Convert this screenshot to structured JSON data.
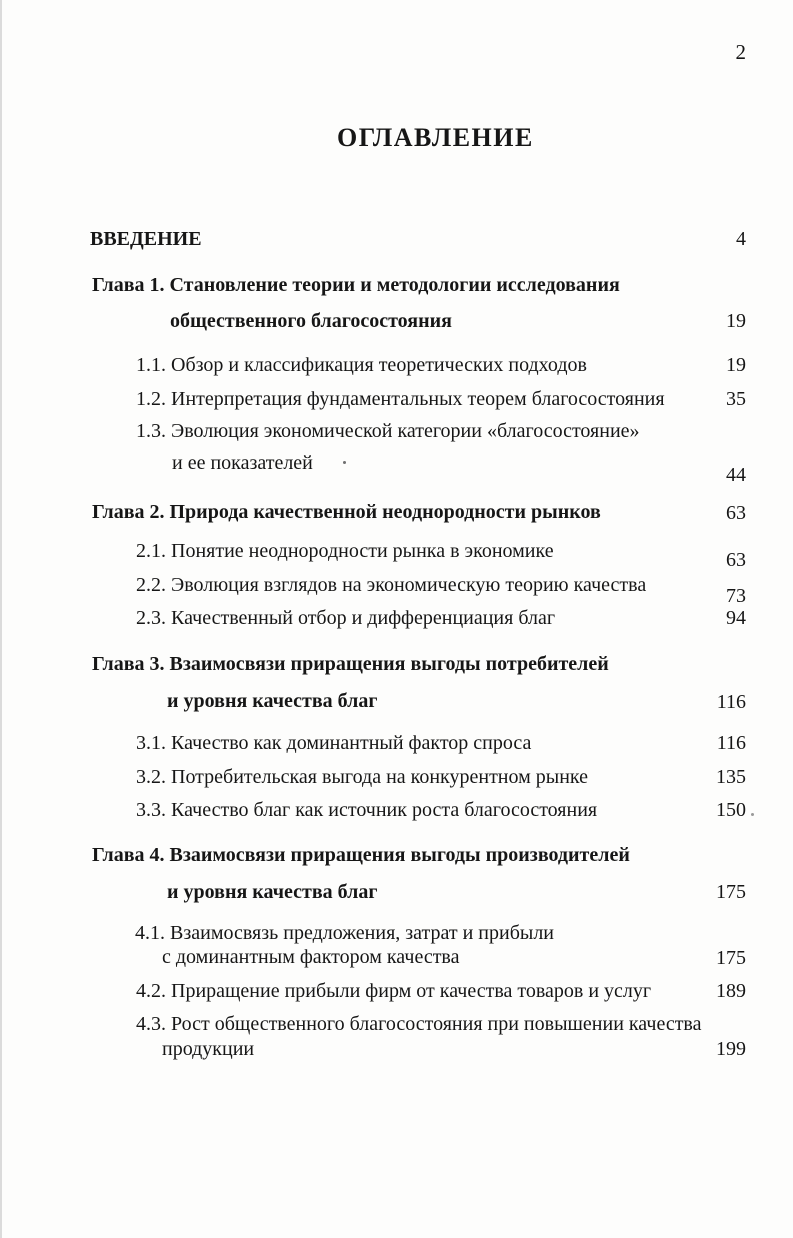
{
  "page": {
    "number": "2",
    "title": "ОГЛАВЛЕНИЕ"
  },
  "toc": {
    "lines": [
      {
        "id": "vvedenie",
        "text": "ВВЕДЕНИЕ",
        "page": "4"
      },
      {
        "id": "ch1-l1",
        "text": "Глава 1. Становление теории и методологии исследования"
      },
      {
        "id": "ch1-l2",
        "text": "общественного благосостояния",
        "page": "19"
      },
      {
        "id": "s11",
        "text": "1.1. Обзор и классификация теоретических подходов",
        "page": "19"
      },
      {
        "id": "s12",
        "text": "1.2. Интерпретация фундаментальных теорем благосостояния",
        "page": "35"
      },
      {
        "id": "s13-l1",
        "text": "1.3. Эволюция экономической категории «благосостояние»"
      },
      {
        "id": "s13-l2",
        "text": "и ее показателей",
        "page": "44"
      },
      {
        "id": "ch2",
        "text": "Глава 2. Природа качественной неоднородности рынков",
        "page": "63"
      },
      {
        "id": "s21",
        "text": "2.1. Понятие неоднородности рынка в экономике",
        "page": "63"
      },
      {
        "id": "s22",
        "text": "2.2. Эволюция взглядов на экономическую теорию качества",
        "page": "73"
      },
      {
        "id": "s23",
        "text": "2.3. Качественный отбор и дифференциация благ",
        "page": "94"
      },
      {
        "id": "ch3-l1",
        "text": "Глава 3. Взаимосвязи приращения выгоды потребителей"
      },
      {
        "id": "ch3-l2",
        "text": "и уровня качества благ",
        "page": "116"
      },
      {
        "id": "s31",
        "text": "3.1. Качество как доминантный фактор спроса",
        "page": "116"
      },
      {
        "id": "s32",
        "text": "3.2. Потребительская выгода на конкурентном рынке",
        "page": "135"
      },
      {
        "id": "s33",
        "text": "3.3. Качество благ как источник роста благосостояния",
        "page": "150"
      },
      {
        "id": "ch4-l1",
        "text": "Глава 4. Взаимосвязи приращения выгоды производителей"
      },
      {
        "id": "ch4-l2",
        "text": "и уровня качества благ",
        "page": "175"
      },
      {
        "id": "s41-l1",
        "text": "4.1. Взаимосвязь предложения, затрат и прибыли"
      },
      {
        "id": "s41-l2",
        "text": "с доминантным фактором качества",
        "page": "175"
      },
      {
        "id": "s42",
        "text": "4.2. Приращение прибыли фирм от качества товаров и услуг",
        "page": "189"
      },
      {
        "id": "s43-l1",
        "text": "4.3. Рост общественного благосостояния при повышении качества"
      },
      {
        "id": "s43-l2",
        "text": "продукции",
        "page": "199"
      }
    ]
  }
}
